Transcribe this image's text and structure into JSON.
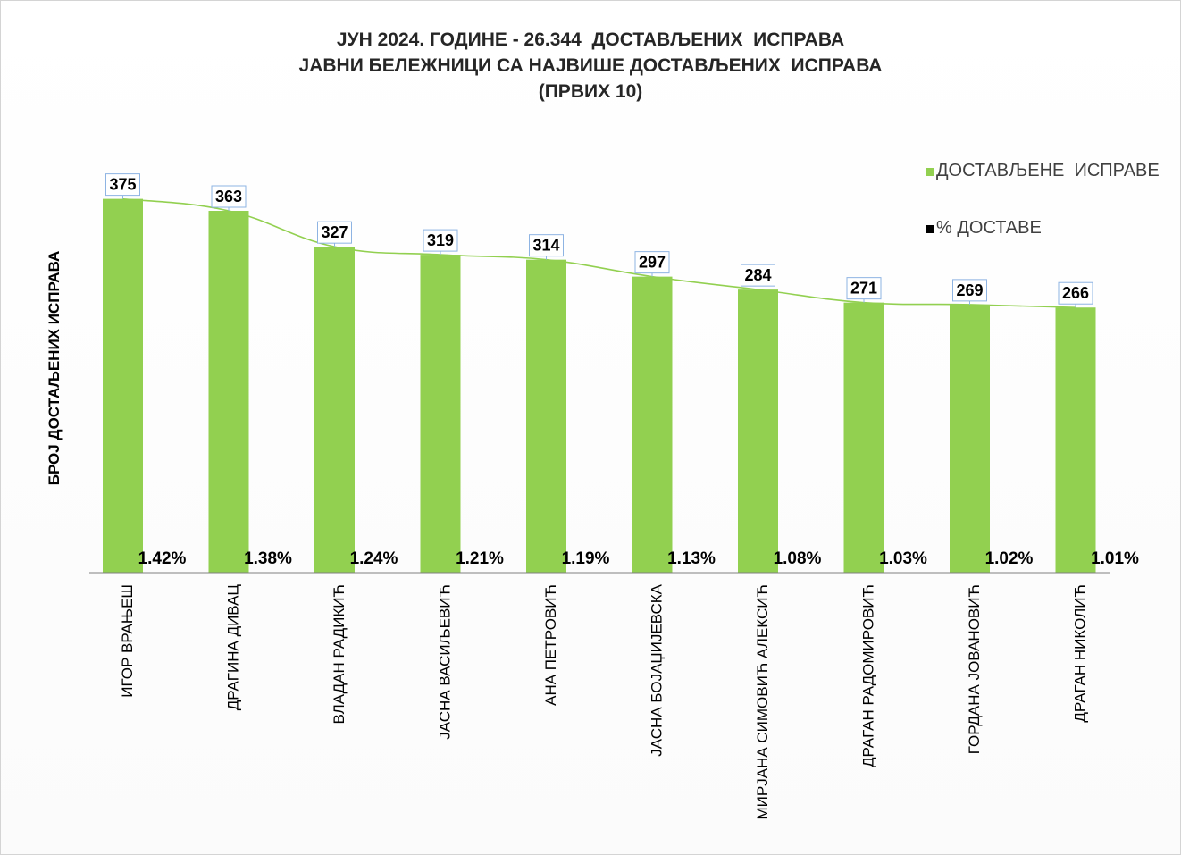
{
  "chart_data": {
    "type": "bar",
    "title_lines": [
      "ЈУН 2024. ГОДИНЕ - 26.344  ДОСТАВЉЕНИХ  ИСПРАВА",
      "ЈАВНИ БЕЛЕЖНИЦИ СА НАЈВИШЕ ДОСТАВЉЕНИХ  ИСПРАВА",
      "(ПРВИХ 10)"
    ],
    "ylabel": "БРОЈ ДОСТАЉЕНИХ ИСПРАВА",
    "xlabel": "",
    "categories": [
      "ИГОР ВРАЊЕШ",
      "ДРАГИНА ДИВАЦ",
      "ВЛАДАН РАДИКИЋ",
      "ЈАСНА ВАСИЉЕВИЋ",
      "АНА ПЕТРОВИЋ",
      "ЈАСНА БОЈАЏИЈЕВСКА",
      "МИРЈАНА СИМОВИЋ АЛЕКСИЋ",
      "ДРАГАН РАДОМИРОВИЋ",
      "ГОРДАНА ЈОВАНОВИЋ",
      "ДРАГАН НИКОЛИЋ"
    ],
    "series": [
      {
        "name": "ДОСТАВЉЕНЕ  ИСПРАВЕ",
        "values": [
          375,
          363,
          327,
          319,
          314,
          297,
          284,
          271,
          269,
          266
        ],
        "labels": [
          "375",
          "363",
          "327",
          "319",
          "314",
          "297",
          "284",
          "271",
          "269",
          "266"
        ],
        "color": "#92d050"
      },
      {
        "name": "% ДОСТАВЕ",
        "values": [
          1.42,
          1.38,
          1.24,
          1.21,
          1.19,
          1.13,
          1.08,
          1.03,
          1.02,
          1.01
        ],
        "labels": [
          "1.42%",
          "1.38%",
          "1.24%",
          "1.21%",
          "1.19%",
          "1.13%",
          "1.08%",
          "1.03%",
          "1.02%",
          "1.01%"
        ],
        "color": "#000000"
      }
    ],
    "trendline_color": "#92d050",
    "legend_position": "right",
    "grid": false
  }
}
